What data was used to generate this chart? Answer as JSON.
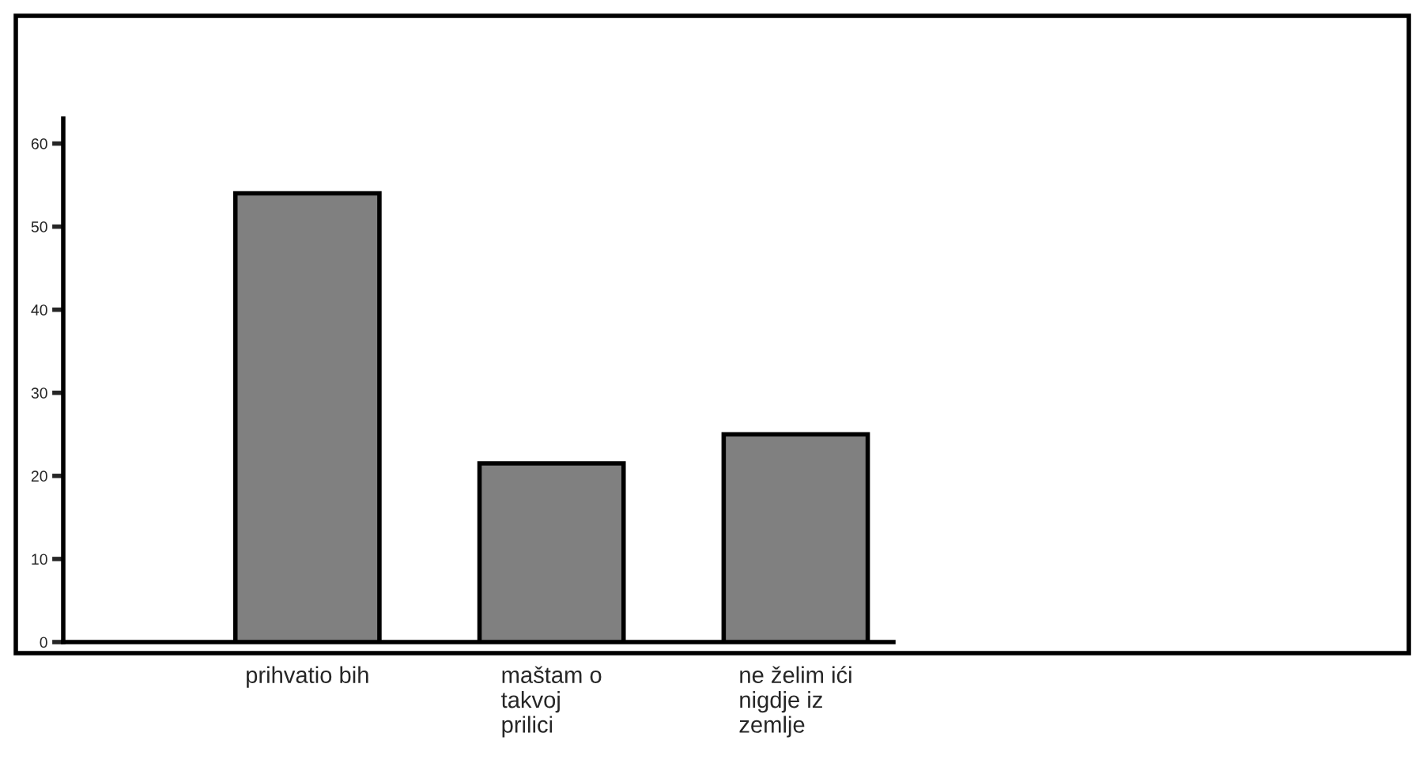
{
  "chart_data": {
    "type": "bar",
    "categories": [
      "prihvatio bih",
      "maštam o\ntakvoj\nprilici",
      "ne želim ići\nnigdje iz\nzemlje"
    ],
    "values": [
      54,
      21.5,
      25
    ],
    "color": "#808080",
    "ylim": [
      0,
      63
    ],
    "yticks": [
      0,
      10,
      20,
      30,
      40,
      50,
      60
    ],
    "grid": false,
    "legend": false
  }
}
